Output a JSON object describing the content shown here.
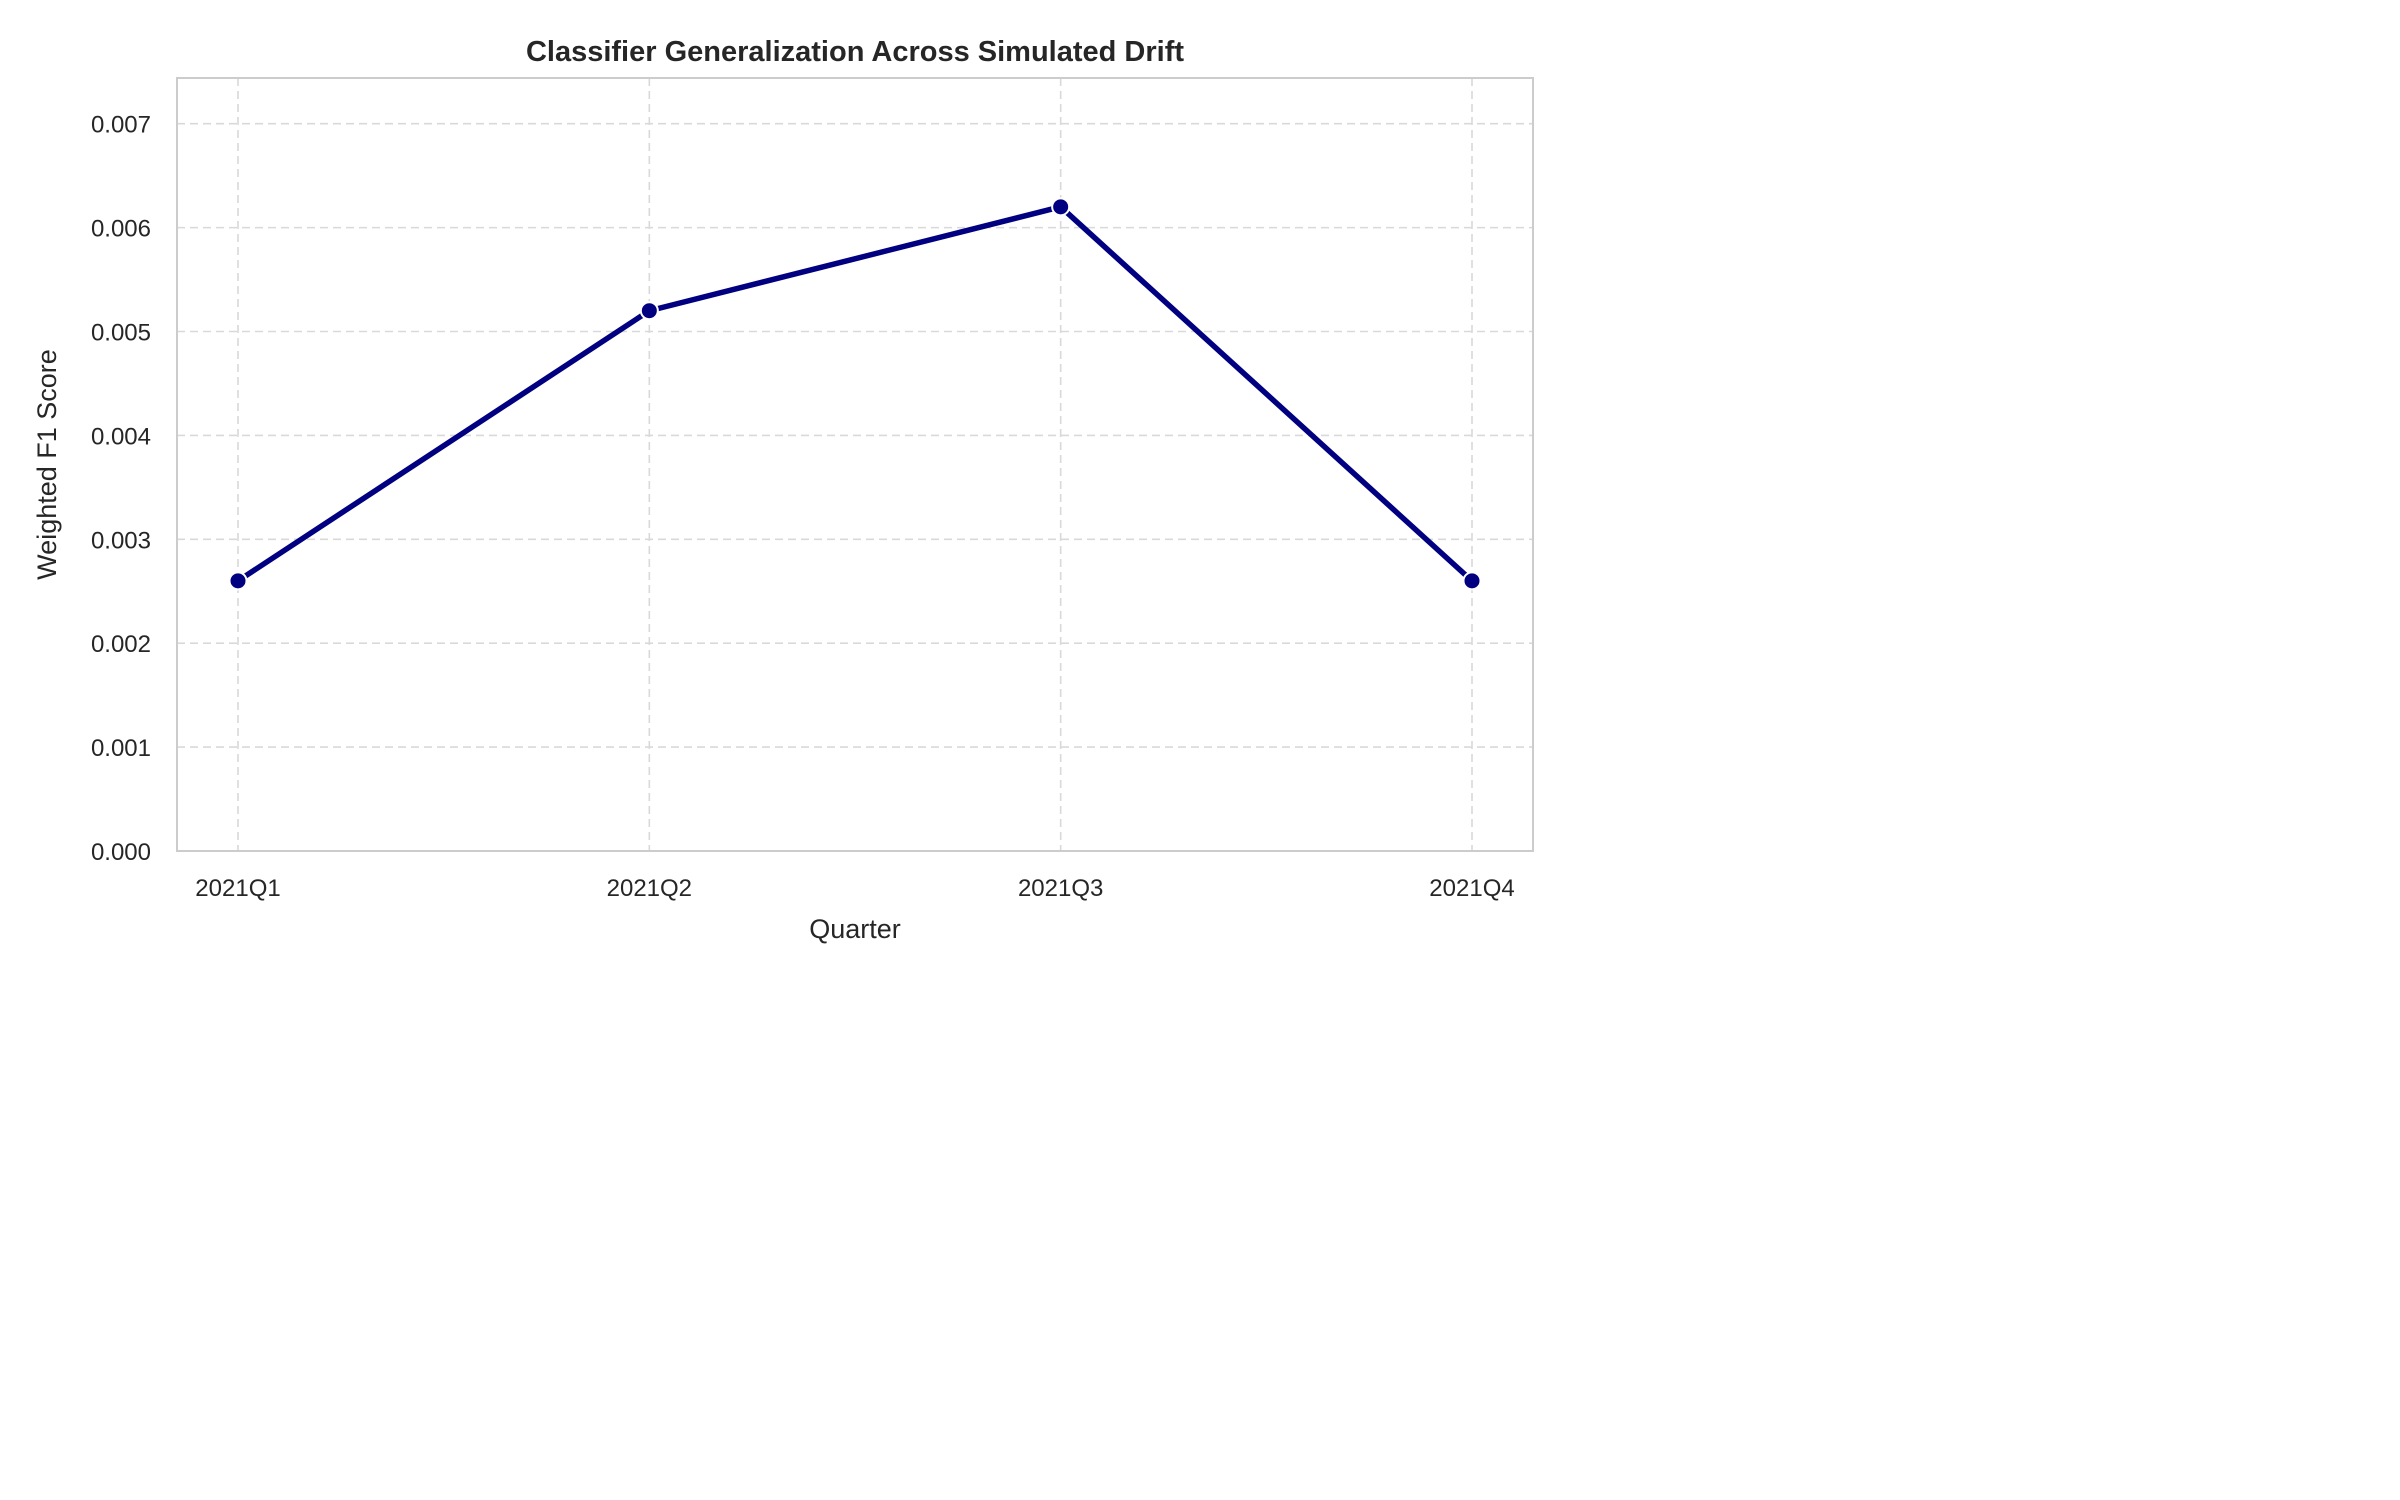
{
  "chart_data": {
    "type": "line",
    "title": "Classifier Generalization Across Simulated Drift",
    "xlabel": "Quarter",
    "ylabel": "Weighted F1 Score",
    "categories": [
      "2021Q1",
      "2021Q2",
      "2021Q3",
      "2021Q4"
    ],
    "series": [
      {
        "values": [
          0.0026,
          0.0052,
          0.0062,
          0.0026
        ],
        "color": "#000080"
      }
    ],
    "ylim": [
      0,
      0.00744
    ],
    "yticks": [
      0,
      0.001,
      0.002,
      0.003,
      0.004,
      0.005,
      0.006,
      0.007
    ],
    "ytick_labels": [
      "0.000",
      "0.001",
      "0.002",
      "0.003",
      "0.004",
      "0.005",
      "0.006",
      "0.007"
    ],
    "grid": true,
    "grid_style": "dashed",
    "legend": false,
    "marker": "circle"
  }
}
